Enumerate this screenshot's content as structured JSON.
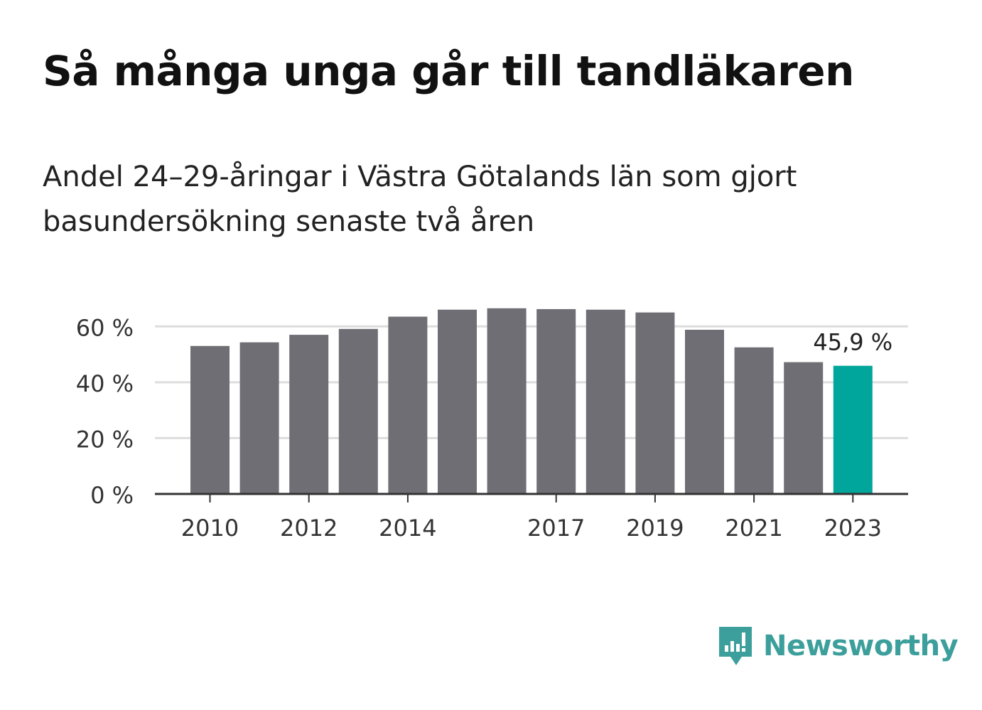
{
  "title": "Så många unga går till tandläkaren",
  "subtitle": "Andel 24–29-åringar i Västra Götalands län som gjort basundersökning senaste två åren",
  "brand": {
    "name": "Newsworthy",
    "color": "#3d9f9b"
  },
  "colors": {
    "bar": "#6f6e74",
    "highlight": "#00a59b",
    "grid": "#dddddd",
    "axis": "#333333",
    "text": "#333333"
  },
  "chart_data": {
    "type": "bar",
    "categories": [
      2010,
      2011,
      2012,
      2013,
      2014,
      2015,
      2016,
      2017,
      2018,
      2019,
      2020,
      2021,
      2022,
      2023
    ],
    "values": [
      53.0,
      54.3,
      57.0,
      59.1,
      63.5,
      66.0,
      66.5,
      66.2,
      66.0,
      65.0,
      58.8,
      52.5,
      47.2,
      45.9
    ],
    "highlight_index": 13,
    "highlight_label": "45,9 %",
    "ylim": [
      0,
      70
    ],
    "yticks": [
      0,
      20,
      40,
      60
    ],
    "ytick_labels": [
      "0 %",
      "20 %",
      "40 %",
      "60 %"
    ],
    "xtick_labels": [
      "2010",
      "2012",
      "2014",
      "2017",
      "2019",
      "2021",
      "2023"
    ],
    "xtick_years": [
      2010,
      2012,
      2014,
      2017,
      2019,
      2021,
      2023
    ],
    "grid": true,
    "legend": "none",
    "xlabel": "",
    "ylabel": ""
  }
}
